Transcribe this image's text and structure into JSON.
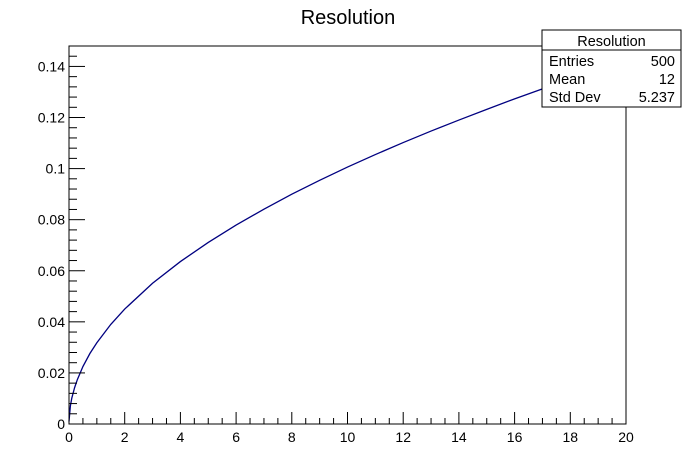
{
  "chart_data": {
    "type": "line",
    "title": "Resolution",
    "xlabel": "",
    "ylabel": "",
    "xlim": [
      0,
      20
    ],
    "ylim": [
      0,
      0.148
    ],
    "x_ticks": [
      0,
      2,
      4,
      6,
      8,
      10,
      12,
      14,
      16,
      18,
      20
    ],
    "y_ticks": [
      0,
      0.02,
      0.04,
      0.06,
      0.08,
      0.1,
      0.12,
      0.14
    ],
    "x_tick_labels": [
      "0",
      "2",
      "4",
      "6",
      "8",
      "10",
      "12",
      "14",
      "16",
      "18",
      "20"
    ],
    "y_tick_labels": [
      "0",
      "0.02",
      "0.04",
      "0.06",
      "0.08",
      "0.1",
      "0.12",
      "0.14"
    ],
    "grid": false,
    "series": [
      {
        "color": "#000080",
        "x": [
          0,
          0.05,
          0.1,
          0.2,
          0.3,
          0.5,
          0.75,
          1,
          1.5,
          2,
          3,
          4,
          5,
          6,
          7,
          8,
          9,
          10,
          11,
          12,
          13,
          14,
          15,
          16,
          17,
          18,
          19,
          20
        ],
        "values": [
          0.001,
          0.0071,
          0.0101,
          0.0142,
          0.0174,
          0.0225,
          0.0276,
          0.0318,
          0.039,
          0.045,
          0.0551,
          0.0636,
          0.0711,
          0.0779,
          0.0841,
          0.09,
          0.0954,
          0.1006,
          0.1055,
          0.1102,
          0.1147,
          0.119,
          0.1232,
          0.1273,
          0.1312,
          0.135,
          0.1387,
          0.1423
        ]
      }
    ]
  },
  "stats_box": {
    "title": "Resolution",
    "rows": [
      {
        "label": "Entries",
        "value": "500"
      },
      {
        "label": "Mean",
        "value": "12"
      },
      {
        "label": "Std Dev",
        "value": "5.237"
      }
    ]
  }
}
